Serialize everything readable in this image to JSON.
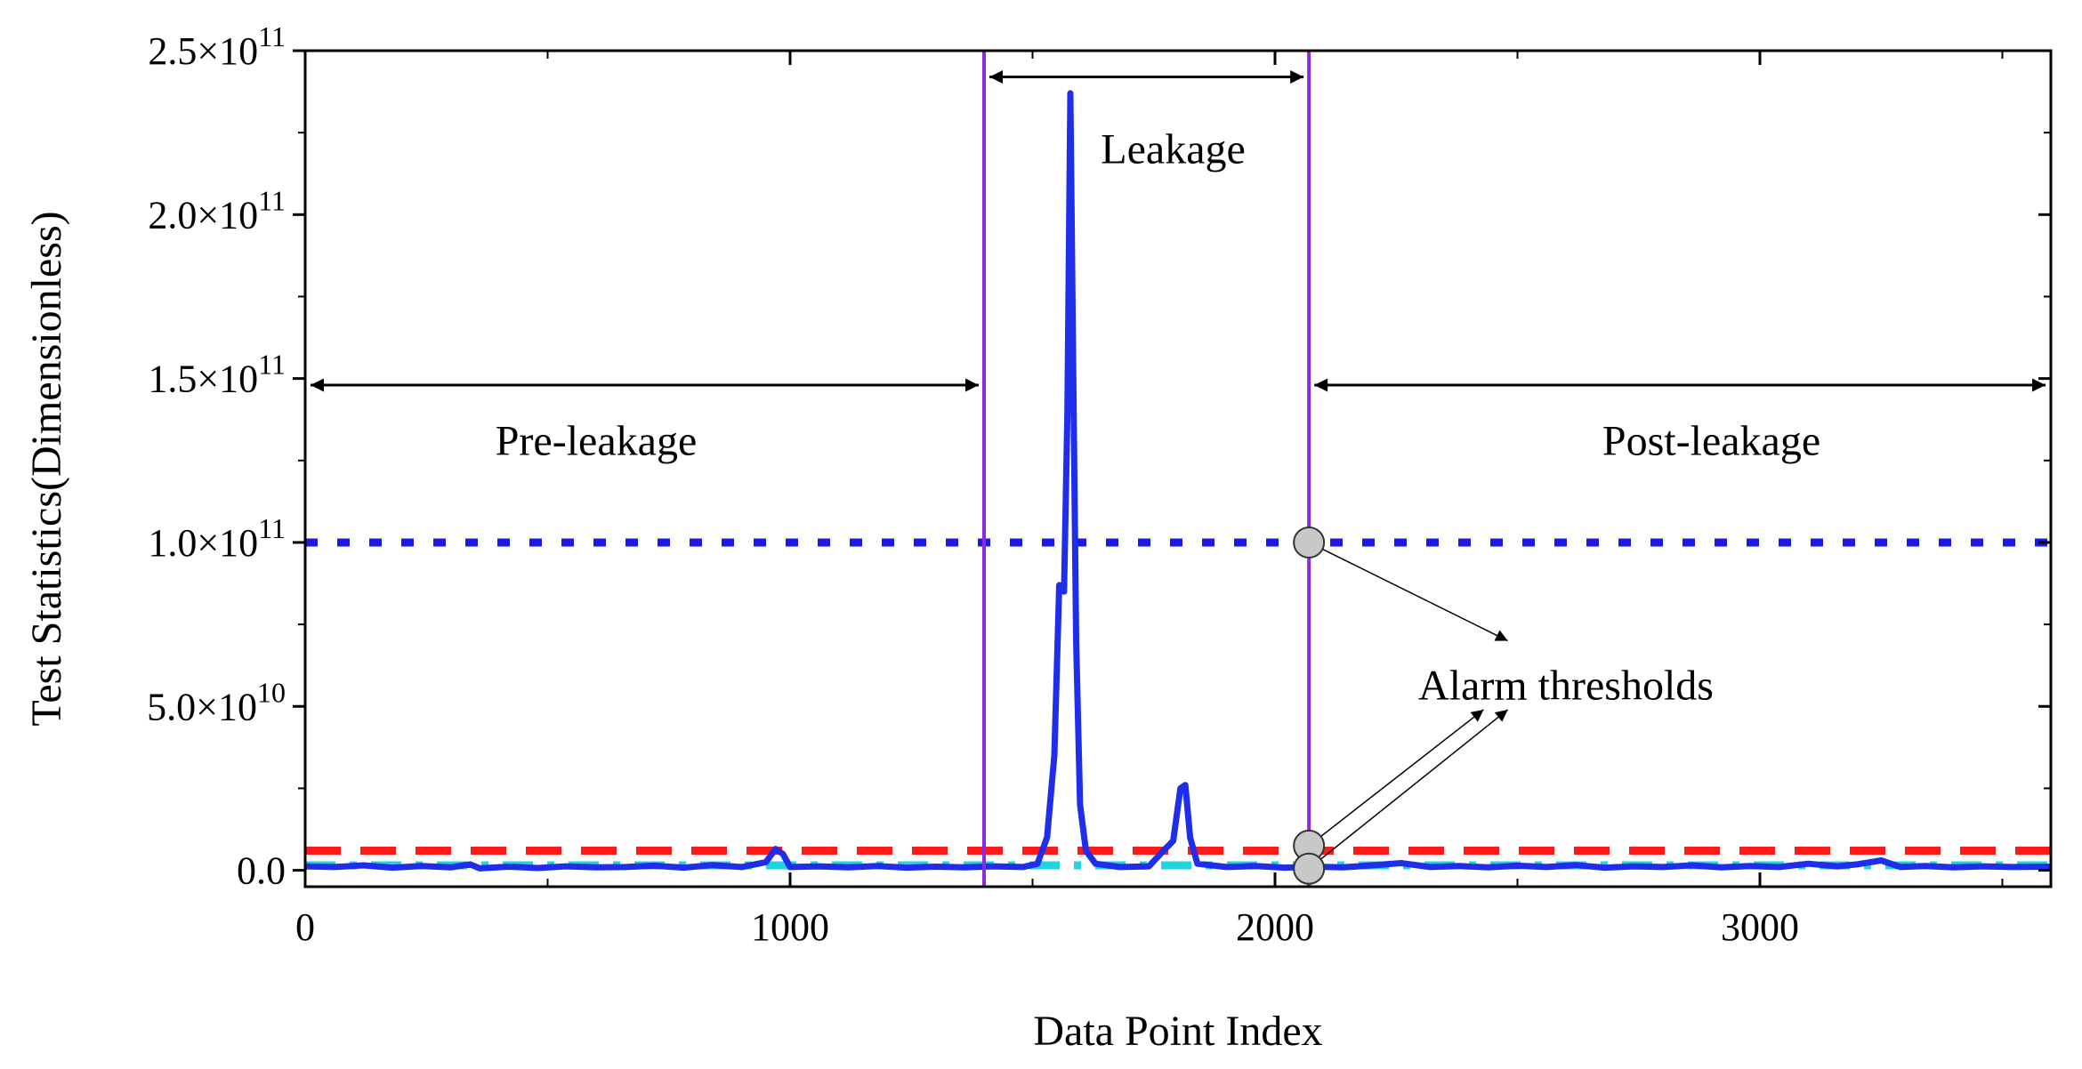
{
  "chart_data": {
    "type": "line",
    "xlabel": "Data Point Index",
    "ylabel": "Test Statistics(Dimensionless)",
    "xlim": [
      0,
      3600
    ],
    "ylim": [
      -5000000000.0,
      250000000000.0
    ],
    "x_ticks": [
      0,
      1000,
      2000,
      3000
    ],
    "x_tick_labels": [
      "0",
      "1000",
      "2000",
      "3000"
    ],
    "y_ticks": [
      0,
      50000000000.0,
      100000000000.0,
      150000000000.0,
      200000000000.0,
      250000000000.0
    ],
    "y_tick_labels": [
      {
        "mant": "0.0",
        "exp": ""
      },
      {
        "mant": "5.0×10",
        "exp": "10"
      },
      {
        "mant": "1.0×10",
        "exp": "11"
      },
      {
        "mant": "1.5×10",
        "exp": "11"
      },
      {
        "mant": "2.0×10",
        "exp": "11"
      },
      {
        "mant": "2.5×10",
        "exp": "11"
      }
    ],
    "series": [
      {
        "color": "#1f2ee8",
        "points": [
          [
            0,
            1200000000.0
          ],
          [
            60,
            1000000000.0
          ],
          [
            120,
            1500000000.0
          ],
          [
            180,
            800000000.0
          ],
          [
            240,
            1300000000.0
          ],
          [
            300,
            900000000.0
          ],
          [
            340,
            1800000000.0
          ],
          [
            360,
            600000000.0
          ],
          [
            420,
            1100000000.0
          ],
          [
            480,
            700000000.0
          ],
          [
            540,
            1200000000.0
          ],
          [
            600,
            900000000.0
          ],
          [
            660,
            1000000000.0
          ],
          [
            720,
            1400000000.0
          ],
          [
            780,
            800000000.0
          ],
          [
            840,
            1600000000.0
          ],
          [
            900,
            1000000000.0
          ],
          [
            950,
            2500000000.0
          ],
          [
            970,
            6500000000.0
          ],
          [
            985,
            5000000000.0
          ],
          [
            1000,
            1000000000.0
          ],
          [
            1060,
            1200000000.0
          ],
          [
            1120,
            900000000.0
          ],
          [
            1180,
            1300000000.0
          ],
          [
            1240,
            800000000.0
          ],
          [
            1300,
            1100000000.0
          ],
          [
            1360,
            900000000.0
          ],
          [
            1420,
            1200000000.0
          ],
          [
            1480,
            1000000000.0
          ],
          [
            1510,
            2000000000.0
          ],
          [
            1530,
            10000000000.0
          ],
          [
            1545,
            35000000000.0
          ],
          [
            1555,
            87000000000.0
          ],
          [
            1565,
            85000000000.0
          ],
          [
            1572,
            140000000000.0
          ],
          [
            1578,
            237000000000.0
          ],
          [
            1584,
            150000000000.0
          ],
          [
            1590,
            70000000000.0
          ],
          [
            1598,
            20000000000.0
          ],
          [
            1610,
            6000000000.0
          ],
          [
            1630,
            2000000000.0
          ],
          [
            1680,
            1000000000.0
          ],
          [
            1740,
            1200000000.0
          ],
          [
            1770,
            6000000000.0
          ],
          [
            1790,
            9000000000.0
          ],
          [
            1805,
            25000000000.0
          ],
          [
            1815,
            26000000000.0
          ],
          [
            1825,
            10000000000.0
          ],
          [
            1840,
            2000000000.0
          ],
          [
            1900,
            1000000000.0
          ],
          [
            1960,
            1300000000.0
          ],
          [
            2020,
            800000000.0
          ],
          [
            2080,
            1100000000.0
          ],
          [
            2140,
            900000000.0
          ],
          [
            2200,
            1500000000.0
          ],
          [
            2260,
            2200000000.0
          ],
          [
            2320,
            1000000000.0
          ],
          [
            2380,
            1300000000.0
          ],
          [
            2440,
            900000000.0
          ],
          [
            2500,
            1400000000.0
          ],
          [
            2560,
            1000000000.0
          ],
          [
            2620,
            1600000000.0
          ],
          [
            2680,
            800000000.0
          ],
          [
            2740,
            1200000000.0
          ],
          [
            2800,
            1000000000.0
          ],
          [
            2860,
            1500000000.0
          ],
          [
            2920,
            900000000.0
          ],
          [
            2980,
            1300000000.0
          ],
          [
            3040,
            1000000000.0
          ],
          [
            3100,
            2000000000.0
          ],
          [
            3160,
            1200000000.0
          ],
          [
            3200,
            1800000000.0
          ],
          [
            3250,
            3000000000.0
          ],
          [
            3290,
            1000000000.0
          ],
          [
            3340,
            1300000000.0
          ],
          [
            3400,
            900000000.0
          ],
          [
            3460,
            1200000000.0
          ],
          [
            3520,
            1000000000.0
          ],
          [
            3600,
            1100000000.0
          ]
        ]
      }
    ],
    "thresholds": [
      {
        "y": 100000000000.0,
        "color": "#1a1ae6",
        "style": "dotted"
      },
      {
        "y": 6000000000.0,
        "color": "#ff1a1a",
        "style": "dashed"
      },
      {
        "y": 1500000000.0,
        "color": "#22d4e0",
        "style": "dashdot"
      }
    ],
    "vertical_lines": [
      {
        "x": 1400,
        "color": "#8a2be2"
      },
      {
        "x": 2070,
        "color": "#8a2be2"
      }
    ],
    "regions": [
      {
        "label": "Pre-leakage",
        "x0": 0,
        "x1": 1400,
        "arrow_y": 148000000000.0,
        "text_x": 600,
        "text_y": 131000000000.0
      },
      {
        "label": "Leakage",
        "x0": 1400,
        "x1": 2070,
        "arrow_y": 242000000000.0,
        "text_x": 1790,
        "text_y": 220000000000.0
      },
      {
        "label": "Post-leakage",
        "x0": 2070,
        "x1": 3600,
        "arrow_y": 148000000000.0,
        "text_x": 2900,
        "text_y": 131000000000.0
      }
    ],
    "annotation": {
      "label": "Alarm thresholds",
      "text_x": 2600,
      "text_y": 56500000000.0,
      "markers": [
        [
          2070,
          100000000000.0
        ],
        [
          2070,
          7500000000.0
        ],
        [
          2070,
          500000000.0
        ]
      ],
      "arrow_targets": [
        [
          2480,
          70000000000.0
        ],
        [
          2430,
          49000000000.0
        ],
        [
          2480,
          49000000000.0
        ]
      ]
    }
  }
}
